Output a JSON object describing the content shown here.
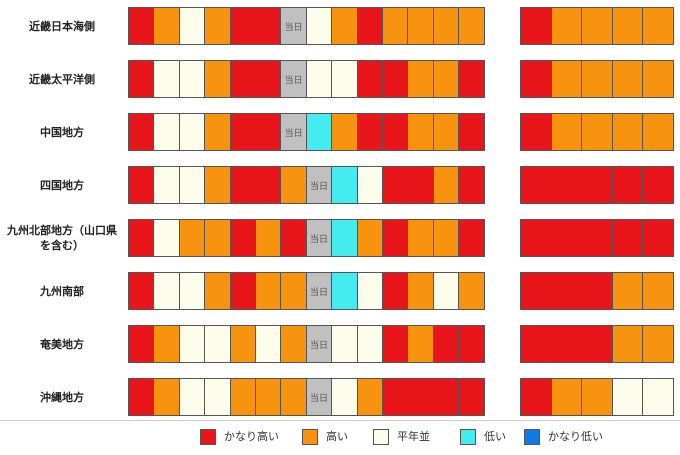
{
  "chart_data": {
    "type": "table",
    "today_label": "当日",
    "status_colors": {
      "veryhigh": "#e8151b",
      "high": "#f7930f",
      "normal": "#fdfdeb",
      "low": "#45ecef",
      "verylow": "#1278e3",
      "today": "#c0c0c0"
    },
    "legend": [
      {
        "key": "veryhigh",
        "label": "かなり高い"
      },
      {
        "key": "high",
        "label": "高い"
      },
      {
        "key": "normal",
        "label": "平年並"
      },
      {
        "key": "low",
        "label": "低い"
      },
      {
        "key": "verylow",
        "label": "かなり低い"
      }
    ],
    "rows": [
      {
        "region": "近畿日本海側",
        "daily": [
          "veryhigh",
          "high",
          "normal",
          "high",
          "veryhigh",
          "veryhigh",
          "today",
          "normal",
          "high",
          "veryhigh",
          "high",
          "high",
          "high",
          "high"
        ],
        "weekly": [
          "veryhigh",
          "high",
          "high",
          "high",
          "high"
        ]
      },
      {
        "region": "近畿太平洋側",
        "daily": [
          "veryhigh",
          "normal",
          "normal",
          "high",
          "veryhigh",
          "veryhigh",
          "today",
          "normal",
          "normal",
          "veryhigh",
          "veryhigh",
          "high",
          "high",
          "veryhigh"
        ],
        "weekly": [
          "veryhigh",
          "high",
          "high",
          "high",
          "high"
        ]
      },
      {
        "region": "中国地方",
        "daily": [
          "veryhigh",
          "normal",
          "normal",
          "high",
          "veryhigh",
          "veryhigh",
          "today",
          "low",
          "high",
          "veryhigh",
          "veryhigh",
          "high",
          "high",
          "veryhigh"
        ],
        "weekly": [
          "veryhigh",
          "high",
          "high",
          "high",
          "high"
        ]
      },
      {
        "region": "四国地方",
        "daily": [
          "veryhigh",
          "normal",
          "normal",
          "high",
          "veryhigh",
          "veryhigh",
          "high",
          "today",
          "low",
          "normal",
          "veryhigh",
          "veryhigh",
          "high",
          "veryhigh"
        ],
        "weekly": [
          "veryhigh",
          "veryhigh",
          "veryhigh",
          "veryhigh",
          "veryhigh"
        ]
      },
      {
        "region": "九州北部地方（山口県を含む）",
        "daily": [
          "veryhigh",
          "normal",
          "high",
          "high",
          "veryhigh",
          "high",
          "veryhigh",
          "today",
          "low",
          "high",
          "veryhigh",
          "high",
          "high",
          "veryhigh"
        ],
        "weekly": [
          "veryhigh",
          "veryhigh",
          "veryhigh",
          "veryhigh",
          "veryhigh"
        ]
      },
      {
        "region": "九州南部",
        "daily": [
          "veryhigh",
          "normal",
          "normal",
          "high",
          "veryhigh",
          "high",
          "high",
          "today",
          "low",
          "normal",
          "veryhigh",
          "high",
          "normal",
          "high"
        ],
        "weekly": [
          "veryhigh",
          "veryhigh",
          "veryhigh",
          "high",
          "high"
        ]
      },
      {
        "region": "奄美地方",
        "daily": [
          "veryhigh",
          "high",
          "normal",
          "normal",
          "high",
          "normal",
          "high",
          "today",
          "normal",
          "normal",
          "veryhigh",
          "high",
          "veryhigh",
          "veryhigh"
        ],
        "weekly": [
          "veryhigh",
          "veryhigh",
          "veryhigh",
          "high",
          "high"
        ]
      },
      {
        "region": "沖縄地方",
        "daily": [
          "veryhigh",
          "high",
          "normal",
          "normal",
          "high",
          "high",
          "high",
          "today",
          "normal",
          "high",
          "veryhigh",
          "veryhigh",
          "veryhigh",
          "veryhigh"
        ],
        "weekly": [
          "veryhigh",
          "high",
          "high",
          "normal",
          "normal"
        ]
      }
    ]
  }
}
